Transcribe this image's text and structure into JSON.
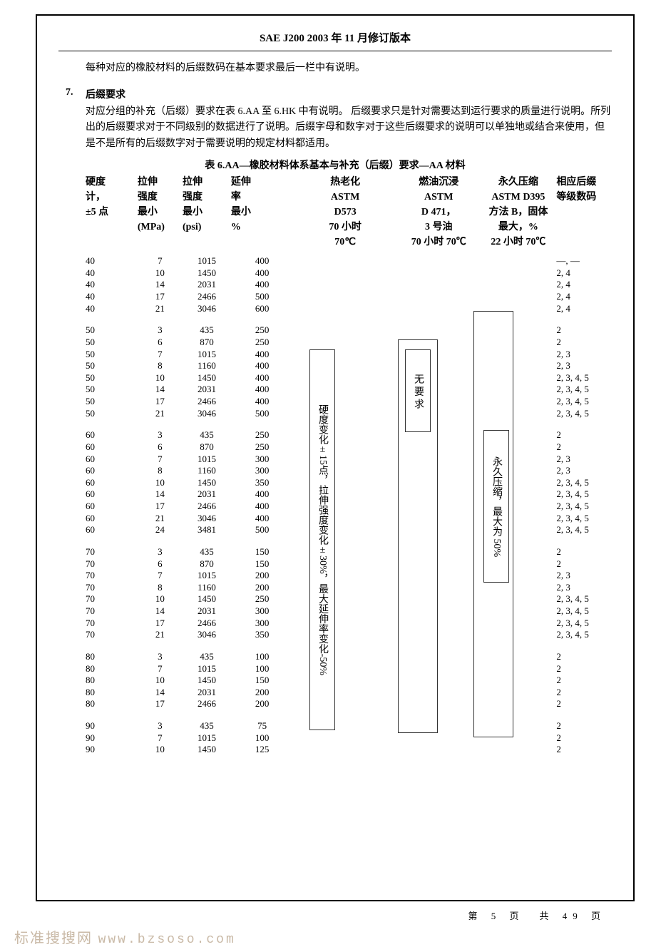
{
  "doc_title": "SAE J200 2003 年 11 月修订版本",
  "intro_line": "每种对应的橡胶材料的后缀数码在基本要求最后一栏中有说明。",
  "section_num": "7.",
  "section_title": "后缀要求",
  "section_body": "对应分组的补充（后缀）要求在表 6.AA 至 6.HK 中有说明。\n后缀要求只是针对需要达到运行要求的质量进行说明。所列出的后缀要求对于不同级别的数据进行了说明。后缀字母和数字对于这些后缀要求的说明可以单独地或结合来使用，但是不是所有的后缀数字对于需要说明的规定材料都适用。",
  "table_title": "表 6.AA—橡胶材料体系基本与补充（后缀）要求—AA 材料",
  "headers": {
    "h1": "硬度\n计，\n±5 点",
    "h2": "拉伸\n强度\n最小\n(MPa)",
    "h3": "拉伸\n强度\n最小\n(psi)",
    "h4": "延伸\n率\n最小\n%",
    "h5": "热老化\nASTM\nD573\n70 小时\n70℃",
    "h6": "燃油沉浸\nASTM\nD 471，\n3 号油\n70 小时 70℃",
    "h7": "永久压缩\nASTM D395\n方法 B，固体\n最大，%\n22 小时 70℃",
    "h8": "相应后缀\n等级数码"
  },
  "box_aging": "硬度变化±15点，拉伸强度变化±30%，最大延伸率变化-50%",
  "box_fuel": "无\n要\n求",
  "box_comp": "永久压缩，最大为 50%",
  "groups": [
    {
      "rows": [
        {
          "h": "40",
          "mpa": "7",
          "psi": "1015",
          "el": "400",
          "s": "—, —"
        },
        {
          "h": "40",
          "mpa": "10",
          "psi": "1450",
          "el": "400",
          "s": "2, 4"
        },
        {
          "h": "40",
          "mpa": "14",
          "psi": "2031",
          "el": "400",
          "s": "2, 4"
        },
        {
          "h": "40",
          "mpa": "17",
          "psi": "2466",
          "el": "500",
          "s": "2, 4"
        },
        {
          "h": "40",
          "mpa": "21",
          "psi": "3046",
          "el": "600",
          "s": "2, 4"
        }
      ]
    },
    {
      "rows": [
        {
          "h": "50",
          "mpa": "3",
          "psi": "435",
          "el": "250",
          "s": "2"
        },
        {
          "h": "50",
          "mpa": "6",
          "psi": "870",
          "el": "250",
          "s": "2"
        },
        {
          "h": "50",
          "mpa": "7",
          "psi": "1015",
          "el": "400",
          "s": "2, 3"
        },
        {
          "h": "50",
          "mpa": "8",
          "psi": "1160",
          "el": "400",
          "s": "2, 3"
        },
        {
          "h": "50",
          "mpa": "10",
          "psi": "1450",
          "el": "400",
          "s": "2, 3, 4, 5"
        },
        {
          "h": "50",
          "mpa": "14",
          "psi": "2031",
          "el": "400",
          "s": "2, 3, 4, 5"
        },
        {
          "h": "50",
          "mpa": "17",
          "psi": "2466",
          "el": "400",
          "s": "2, 3, 4, 5"
        },
        {
          "h": "50",
          "mpa": "21",
          "psi": "3046",
          "el": "500",
          "s": "2, 3, 4, 5"
        }
      ]
    },
    {
      "rows": [
        {
          "h": "60",
          "mpa": "3",
          "psi": "435",
          "el": "250",
          "s": "2"
        },
        {
          "h": "60",
          "mpa": "6",
          "psi": "870",
          "el": "250",
          "s": "2"
        },
        {
          "h": "60",
          "mpa": "7",
          "psi": "1015",
          "el": "300",
          "s": "2, 3"
        },
        {
          "h": "60",
          "mpa": "8",
          "psi": "1160",
          "el": "300",
          "s": "2, 3"
        },
        {
          "h": "60",
          "mpa": "10",
          "psi": "1450",
          "el": "350",
          "s": "2, 3, 4, 5"
        },
        {
          "h": "60",
          "mpa": "14",
          "psi": "2031",
          "el": "400",
          "s": "2, 3, 4, 5"
        },
        {
          "h": "60",
          "mpa": "17",
          "psi": "2466",
          "el": "400",
          "s": "2, 3, 4, 5"
        },
        {
          "h": "60",
          "mpa": "21",
          "psi": "3046",
          "el": "400",
          "s": "2, 3, 4, 5"
        },
        {
          "h": "60",
          "mpa": "24",
          "psi": "3481",
          "el": "500",
          "s": "2, 3, 4, 5"
        }
      ]
    },
    {
      "rows": [
        {
          "h": "70",
          "mpa": "3",
          "psi": "435",
          "el": "150",
          "s": "2"
        },
        {
          "h": "70",
          "mpa": "6",
          "psi": "870",
          "el": "150",
          "s": "2"
        },
        {
          "h": "70",
          "mpa": "7",
          "psi": "1015",
          "el": "200",
          "s": "2, 3"
        },
        {
          "h": "70",
          "mpa": "8",
          "psi": "1160",
          "el": "200",
          "s": "2, 3"
        },
        {
          "h": "70",
          "mpa": "10",
          "psi": "1450",
          "el": "250",
          "s": "2, 3, 4, 5"
        },
        {
          "h": "70",
          "mpa": "14",
          "psi": "2031",
          "el": "300",
          "s": "2, 3, 4, 5"
        },
        {
          "h": "70",
          "mpa": "17",
          "psi": "2466",
          "el": "300",
          "s": "2, 3, 4, 5"
        },
        {
          "h": "70",
          "mpa": "21",
          "psi": "3046",
          "el": "350",
          "s": "2, 3, 4, 5"
        }
      ]
    },
    {
      "rows": [
        {
          "h": "80",
          "mpa": "3",
          "psi": "435",
          "el": "100",
          "s": "2"
        },
        {
          "h": "80",
          "mpa": "7",
          "psi": "1015",
          "el": "100",
          "s": "2"
        },
        {
          "h": "80",
          "mpa": "10",
          "psi": "1450",
          "el": "150",
          "s": "2"
        },
        {
          "h": "80",
          "mpa": "14",
          "psi": "2031",
          "el": "200",
          "s": "2"
        },
        {
          "h": "80",
          "mpa": "17",
          "psi": "2466",
          "el": "200",
          "s": "2"
        }
      ]
    },
    {
      "rows": [
        {
          "h": "90",
          "mpa": "3",
          "psi": "435",
          "el": "75",
          "s": "2"
        },
        {
          "h": "90",
          "mpa": "7",
          "psi": "1015",
          "el": "100",
          "s": "2"
        },
        {
          "h": "90",
          "mpa": "10",
          "psi": "1450",
          "el": "125",
          "s": "2"
        }
      ]
    }
  ],
  "page_num": "第 5 页　共 49 页",
  "watermark_text": "标准搜搜网",
  "watermark_url": "www.bzsoso.com"
}
